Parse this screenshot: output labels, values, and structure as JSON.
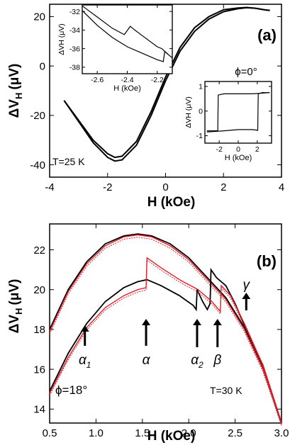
{
  "chart_data": [
    {
      "type": "line",
      "panel_label": "(a)",
      "xlabel": "H (kOe)",
      "ylabel_main": "ΔV",
      "ylabel_sub": "H",
      "ylabel_unit": "(μV)",
      "xlim": [
        -4,
        4
      ],
      "ylim": [
        -45,
        25
      ],
      "xticks": [
        -4,
        -2,
        0,
        2,
        4
      ],
      "yticks": [
        -40,
        -20,
        0,
        20
      ],
      "annotations": {
        "phi": "ϕ=0°",
        "temperature": "T=25 K"
      },
      "series": [
        {
          "branch": "up",
          "color": "#000000",
          "x": [
            -3.5,
            -3.0,
            -2.5,
            -2.0,
            -1.75,
            -1.5,
            -1.0,
            -0.5,
            0.0,
            0.5,
            1.0,
            1.5,
            2.0,
            2.5,
            2.8,
            3.1,
            3.4,
            3.6
          ],
          "y": [
            -14,
            -22.5,
            -31,
            -37,
            -38.5,
            -38,
            -32,
            -20,
            -6,
            6,
            14,
            19,
            22,
            23.2,
            23.6,
            23.4,
            22.8,
            22.5
          ]
        },
        {
          "branch": "down",
          "color": "#000000",
          "x": [
            -3.5,
            -3.0,
            -2.5,
            -2.0,
            -1.75,
            -1.5,
            -1.0,
            -0.5,
            0.0,
            0.5,
            1.0,
            1.5,
            2.0,
            2.5,
            2.8,
            3.1,
            3.4,
            3.6
          ],
          "y": [
            -14,
            -22,
            -30,
            -35.5,
            -37,
            -36.5,
            -30.5,
            -18.5,
            -4.5,
            7.5,
            15.5,
            20,
            22.8,
            23.5,
            23.7,
            23.4,
            22.8,
            22.5
          ]
        }
      ],
      "insets": [
        {
          "type": "line",
          "xlabel": "H (kOe)",
          "ylabel": "ΔVH (μV)",
          "xlim": [
            -2.7,
            -2.1
          ],
          "ylim": [
            -38.7,
            -31.3
          ],
          "xticks": [
            -2.6,
            -2.4,
            -2.2
          ],
          "xticklabels": [
            "-2.6",
            "-2.4",
            "-2.2"
          ],
          "yticks": [
            -38,
            -36,
            -34,
            -32
          ],
          "series": [
            {
              "x": [
                -2.7,
                -2.65,
                -2.6,
                -2.5,
                -2.42,
                -2.38,
                -2.35,
                -2.3,
                -2.2,
                -2.17,
                -2.13
              ],
              "y": [
                -31.4,
                -32.0,
                -32.6,
                -33.8,
                -34.5,
                -33.6,
                -34.0,
                -34.6,
                -35.8,
                -36.0,
                -36.6
              ]
            },
            {
              "x": [
                -2.7,
                -2.6,
                -2.5,
                -2.4,
                -2.3,
                -2.2,
                -2.16,
                -2.15,
                -2.13,
                -2.1
              ],
              "y": [
                -31.9,
                -33.5,
                -34.8,
                -35.8,
                -36.5,
                -37.2,
                -37.4,
                -36.3,
                -36.6,
                -37.0
              ]
            }
          ]
        },
        {
          "type": "line",
          "xlabel": "H (kOe)",
          "ylabel": "ΔVH (μV)",
          "xlim": [
            -3.5,
            3.5
          ],
          "ylim": [
            -1.3,
            1.2
          ],
          "xticks": [
            -2,
            0,
            2
          ],
          "yticks": [
            -1,
            0,
            1
          ],
          "series": [
            {
              "x": [
                -3.3,
                -2.5,
                -2.15,
                -2.1,
                -1.5,
                0,
                1.5,
                3.3
              ],
              "y": [
                -0.8,
                -0.8,
                -0.8,
                0.65,
                0.7,
                0.7,
                0.7,
                0.75
              ]
            },
            {
              "x": [
                3.3,
                2.5,
                2.1,
                2.05,
                1.5,
                0,
                -1.5,
                -3.3
              ],
              "y": [
                0.75,
                0.75,
                0.7,
                -0.78,
                -0.75,
                -0.75,
                -0.8,
                -0.85
              ]
            }
          ]
        }
      ]
    },
    {
      "type": "line",
      "panel_label": "(b)",
      "xlabel": "H (kOe)",
      "ylabel_main": "ΔV",
      "ylabel_sub": "H",
      "ylabel_unit": "(μV)",
      "xlim": [
        0.5,
        3.0
      ],
      "ylim": [
        13.3,
        23.3
      ],
      "xticks": [
        0.5,
        1.0,
        1.5,
        2.0,
        2.5,
        3.0
      ],
      "xticklabels": [
        "0.5",
        "1.0",
        "1.5",
        "2.0",
        "2.5",
        "3.0"
      ],
      "yticks": [
        14,
        16,
        18,
        20,
        22
      ],
      "annotations": {
        "phi": "ϕ=18°",
        "temperature": "T=30 K"
      },
      "arrows": [
        {
          "label": "α",
          "sub": "1",
          "x": 0.88
        },
        {
          "label": "α",
          "sub": "",
          "x": 1.54
        },
        {
          "label": "α",
          "sub": "2",
          "x": 2.09
        },
        {
          "label": "β",
          "sub": "",
          "x": 2.31
        },
        {
          "label": "γ",
          "sub": "",
          "x": 2.62
        }
      ],
      "series": [
        {
          "branch": "upper-black",
          "color": "#000000",
          "x": [
            0.5,
            0.7,
            0.9,
            1.1,
            1.3,
            1.45,
            1.6,
            1.8,
            2.0,
            2.2,
            2.4,
            2.6,
            2.8,
            3.0
          ],
          "y": [
            18.0,
            20.0,
            21.4,
            22.3,
            22.7,
            22.8,
            22.7,
            22.3,
            21.6,
            20.6,
            19.6,
            18.1,
            16.1,
            13.3
          ]
        },
        {
          "branch": "upper-red",
          "color": "#e0202a",
          "x": [
            0.5,
            0.7,
            0.9,
            1.1,
            1.3,
            1.45,
            1.6,
            1.8,
            2.0,
            2.2,
            2.4,
            2.6,
            2.8,
            3.0
          ],
          "y": [
            17.9,
            19.9,
            21.3,
            22.2,
            22.65,
            22.75,
            22.65,
            22.2,
            21.5,
            20.5,
            19.5,
            18.0,
            16.0,
            13.3
          ]
        },
        {
          "branch": "lower-black",
          "color": "#000000",
          "x": [
            0.5,
            0.7,
            0.9,
            1.1,
            1.3,
            1.45,
            1.55,
            1.7,
            1.9,
            2.05,
            2.08,
            2.09,
            2.15,
            2.2,
            2.23,
            2.24,
            2.3,
            2.4,
            2.5,
            2.6,
            2.8,
            3.0
          ],
          "y": [
            14.9,
            16.8,
            18.3,
            19.4,
            20.1,
            20.4,
            20.5,
            20.2,
            19.7,
            19.2,
            19.0,
            20.0,
            19.4,
            19.0,
            19.3,
            21.0,
            20.6,
            20.2,
            19.3,
            18.2,
            16.2,
            13.3
          ]
        },
        {
          "branch": "lower-red",
          "color": "#e0202a",
          "x": [
            0.5,
            0.7,
            0.9,
            1.1,
            1.3,
            1.45,
            1.54,
            1.55,
            1.7,
            1.9,
            2.1,
            2.25,
            2.34,
            2.35,
            2.45,
            2.6,
            2.8,
            3.0
          ],
          "y": [
            14.8,
            16.6,
            18.1,
            19.1,
            19.7,
            20.0,
            20.1,
            21.6,
            21.1,
            20.5,
            20.0,
            19.4,
            18.9,
            20.2,
            19.7,
            18.3,
            16.2,
            13.3
          ]
        }
      ]
    }
  ]
}
